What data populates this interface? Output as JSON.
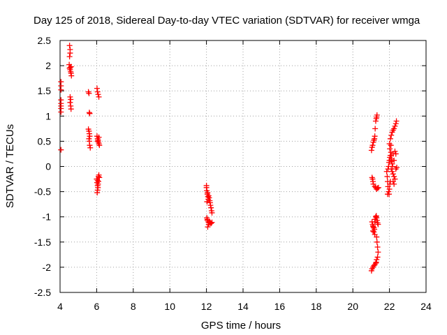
{
  "chart_data": {
    "type": "scatter",
    "title": "Day 125 of 2018, Sidereal Day-to-day VTEC variation (SDTVAR) for receiver wmga",
    "xlabel": "GPS time / hours",
    "ylabel": "SDTVAR / TECUs",
    "xlim": [
      4,
      24
    ],
    "ylim": [
      -2.5,
      2.5
    ],
    "grid": true,
    "marker": "+",
    "xticks": [
      "4",
      "6",
      "8",
      "10",
      "12",
      "14",
      "16",
      "18",
      "20",
      "22",
      "24"
    ],
    "yticks": [
      "-2.5",
      "-2",
      "-1.5",
      "-1",
      "-0.5",
      "0",
      "0.5",
      "1",
      "1.5",
      "2",
      "2.5"
    ],
    "series": [
      {
        "name": "SDTVAR",
        "color": "#ff0000",
        "points": [
          [
            4.05,
            1.68
          ],
          [
            4.05,
            1.6
          ],
          [
            4.05,
            1.52
          ],
          [
            4.05,
            1.32
          ],
          [
            4.05,
            1.25
          ],
          [
            4.05,
            1.2
          ],
          [
            4.05,
            1.15
          ],
          [
            4.05,
            1.08
          ],
          [
            4.05,
            0.33
          ],
          [
            4.52,
            2.4
          ],
          [
            4.55,
            2.32
          ],
          [
            4.55,
            2.25
          ],
          [
            4.52,
            2.18
          ],
          [
            4.5,
            2.02
          ],
          [
            4.52,
            1.95
          ],
          [
            4.55,
            1.92
          ],
          [
            4.58,
            1.88
          ],
          [
            4.6,
            1.85
          ],
          [
            4.62,
            1.8
          ],
          [
            4.55,
            1.96
          ],
          [
            4.6,
            1.98
          ],
          [
            4.55,
            1.38
          ],
          [
            4.58,
            1.33
          ],
          [
            4.55,
            1.27
          ],
          [
            4.58,
            1.2
          ],
          [
            4.6,
            1.14
          ],
          [
            5.55,
            1.48
          ],
          [
            5.58,
            1.45
          ],
          [
            5.6,
            1.07
          ],
          [
            5.62,
            1.05
          ],
          [
            5.55,
            0.74
          ],
          [
            5.58,
            0.7
          ],
          [
            5.6,
            0.65
          ],
          [
            5.62,
            0.6
          ],
          [
            5.58,
            0.55
          ],
          [
            5.6,
            0.5
          ],
          [
            5.62,
            0.42
          ],
          [
            5.65,
            0.37
          ],
          [
            6.02,
            1.55
          ],
          [
            6.05,
            1.48
          ],
          [
            6.08,
            1.43
          ],
          [
            6.12,
            1.38
          ],
          [
            6.02,
            0.6
          ],
          [
            6.05,
            0.55
          ],
          [
            6.08,
            0.52
          ],
          [
            6.1,
            0.48
          ],
          [
            6.12,
            0.45
          ],
          [
            6.15,
            0.42
          ],
          [
            6.05,
            0.5
          ],
          [
            6.12,
            0.58
          ],
          [
            6.0,
            -0.25
          ],
          [
            6.05,
            -0.28
          ],
          [
            6.1,
            -0.2
          ],
          [
            6.12,
            -0.17
          ],
          [
            6.15,
            -0.22
          ],
          [
            6.02,
            -0.32
          ],
          [
            6.05,
            -0.38
          ],
          [
            6.07,
            -0.42
          ],
          [
            6.05,
            -0.47
          ],
          [
            6.03,
            -0.52
          ],
          [
            6.08,
            -0.35
          ],
          [
            6.1,
            -0.3
          ],
          [
            12.0,
            -0.42
          ],
          [
            12.02,
            -0.48
          ],
          [
            12.05,
            -0.55
          ],
          [
            12.08,
            -0.6
          ],
          [
            12.1,
            -0.65
          ],
          [
            12.03,
            -0.7
          ],
          [
            12.06,
            -0.52
          ],
          [
            12.12,
            -0.58
          ],
          [
            12.15,
            -0.62
          ],
          [
            12.18,
            -0.68
          ],
          [
            12.2,
            -0.72
          ],
          [
            12.22,
            -0.77
          ],
          [
            12.25,
            -0.82
          ],
          [
            12.28,
            -0.88
          ],
          [
            12.3,
            -0.92
          ],
          [
            12.0,
            -0.38
          ],
          [
            12.02,
            -1.02
          ],
          [
            12.05,
            -1.07
          ],
          [
            12.1,
            -1.1
          ],
          [
            12.12,
            -1.15
          ],
          [
            12.15,
            -1.12
          ],
          [
            12.18,
            -1.1
          ],
          [
            12.22,
            -1.12
          ],
          [
            12.25,
            -1.13
          ],
          [
            12.3,
            -1.11
          ],
          [
            12.07,
            -1.2
          ],
          [
            12.05,
            -1.05
          ],
          [
            21.02,
            0.32
          ],
          [
            21.05,
            0.38
          ],
          [
            21.08,
            0.42
          ],
          [
            21.12,
            0.48
          ],
          [
            21.15,
            0.52
          ],
          [
            21.18,
            0.55
          ],
          [
            21.2,
            0.6
          ],
          [
            21.22,
            0.75
          ],
          [
            21.25,
            0.9
          ],
          [
            21.3,
            0.98
          ],
          [
            21.32,
            1.02
          ],
          [
            21.28,
            0.95
          ],
          [
            21.05,
            -0.22
          ],
          [
            21.08,
            -0.25
          ],
          [
            21.1,
            -0.3
          ],
          [
            21.12,
            -0.35
          ],
          [
            21.2,
            -0.4
          ],
          [
            21.25,
            -0.42
          ],
          [
            21.3,
            -0.45
          ],
          [
            21.35,
            -0.43
          ],
          [
            21.4,
            -0.42
          ],
          [
            21.05,
            -1.1
          ],
          [
            21.08,
            -1.15
          ],
          [
            21.1,
            -1.18
          ],
          [
            21.12,
            -1.2
          ],
          [
            21.15,
            -1.22
          ],
          [
            21.18,
            -1.25
          ],
          [
            21.2,
            -1.1
          ],
          [
            21.22,
            -1.05
          ],
          [
            21.25,
            -1.0
          ],
          [
            21.28,
            -0.98
          ],
          [
            21.3,
            -1.02
          ],
          [
            21.32,
            -1.07
          ],
          [
            21.35,
            -1.12
          ],
          [
            21.38,
            -1.15
          ],
          [
            21.1,
            -1.28
          ],
          [
            21.15,
            -1.3
          ],
          [
            21.2,
            -1.35
          ],
          [
            21.3,
            -1.4
          ],
          [
            21.32,
            -1.5
          ],
          [
            21.35,
            -1.6
          ],
          [
            21.38,
            -1.7
          ],
          [
            21.35,
            -1.8
          ],
          [
            21.3,
            -1.85
          ],
          [
            21.28,
            -1.9
          ],
          [
            21.25,
            -1.92
          ],
          [
            21.2,
            -1.95
          ],
          [
            21.15,
            -1.97
          ],
          [
            21.1,
            -2.0
          ],
          [
            21.05,
            -2.03
          ],
          [
            21.02,
            -2.07
          ],
          [
            21.85,
            -0.1
          ],
          [
            21.88,
            -0.2
          ],
          [
            21.9,
            -0.3
          ],
          [
            21.92,
            -0.4
          ],
          [
            21.95,
            -0.5
          ],
          [
            21.98,
            -0.55
          ],
          [
            22.0,
            -0.45
          ],
          [
            22.02,
            -0.35
          ],
          [
            22.05,
            -0.3
          ],
          [
            21.9,
            -0.55
          ],
          [
            21.92,
            -0.05
          ],
          [
            21.95,
            0.0
          ],
          [
            21.98,
            0.08
          ],
          [
            22.0,
            0.12
          ],
          [
            22.02,
            0.18
          ],
          [
            22.05,
            0.22
          ],
          [
            22.08,
            0.28
          ],
          [
            22.1,
            0.15
          ],
          [
            22.12,
            0.1
          ],
          [
            22.15,
            0.05
          ],
          [
            22.18,
            0.0
          ],
          [
            22.0,
            0.45
          ],
          [
            22.05,
            0.55
          ],
          [
            22.1,
            0.62
          ],
          [
            22.15,
            0.68
          ],
          [
            22.2,
            0.72
          ],
          [
            22.25,
            0.75
          ],
          [
            22.3,
            0.8
          ],
          [
            22.35,
            0.85
          ],
          [
            22.38,
            0.9
          ],
          [
            22.02,
            0.35
          ],
          [
            22.08,
            0.42
          ],
          [
            22.1,
            -0.05
          ],
          [
            22.15,
            -0.1
          ],
          [
            22.2,
            -0.15
          ],
          [
            22.25,
            -0.2
          ],
          [
            22.3,
            -0.25
          ],
          [
            22.35,
            -0.05
          ],
          [
            22.4,
            -0.02
          ],
          [
            22.2,
            -0.3
          ],
          [
            22.25,
            -0.35
          ],
          [
            22.1,
            0.22
          ],
          [
            22.2,
            0.25
          ],
          [
            22.3,
            0.3
          ],
          [
            22.35,
            0.25
          ],
          [
            22.25,
            0.12
          ]
        ]
      }
    ]
  }
}
